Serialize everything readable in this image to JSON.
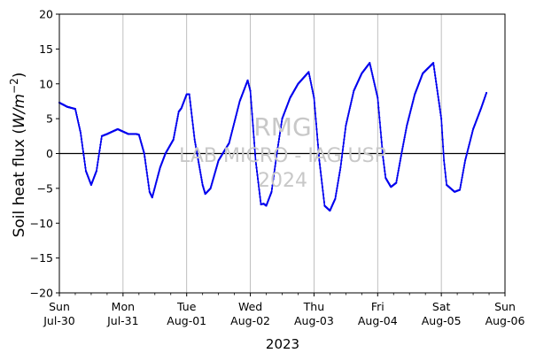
{
  "chart_data": {
    "type": "line",
    "ylabel": "Soil heat flux (W/m⁻²)",
    "ylabel_text": "Soil heat flux (",
    "ylabel_unit_W": "W",
    "ylabel_unit_m": "/m",
    "ylabel_exp": "−2",
    "ylabel_close": ")",
    "xlabel": "2023",
    "ylim": [
      -20,
      20
    ],
    "yticks": [
      20,
      15,
      10,
      5,
      0,
      -5,
      -10,
      -15,
      -20
    ],
    "ytick_labels": [
      "20",
      "15",
      "10",
      "5",
      "0",
      "−5",
      "−10",
      "−15",
      "−20"
    ],
    "xlim_days": [
      0,
      7
    ],
    "xticks": [
      {
        "day": "Sun",
        "date": "Jul-30"
      },
      {
        "day": "Mon",
        "date": "Jul-31"
      },
      {
        "day": "Tue",
        "date": "Aug-01"
      },
      {
        "day": "Wed",
        "date": "Aug-02"
      },
      {
        "day": "Thu",
        "date": "Aug-03"
      },
      {
        "day": "Fri",
        "date": "Aug-04"
      },
      {
        "day": "Sat",
        "date": "Aug-05"
      },
      {
        "day": "Sun",
        "date": "Aug-06"
      }
    ],
    "grid": "x-major",
    "zero_line": true,
    "series": [
      {
        "color": "#0000ee",
        "points": [
          [
            "2023-07-30 00:00",
            7.3
          ],
          [
            "2023-07-30 03:00",
            6.7
          ],
          [
            "2023-07-30 06:00",
            6.4
          ],
          [
            "2023-07-30 08:00",
            3.0
          ],
          [
            "2023-07-30 10:00",
            -2.5
          ],
          [
            "2023-07-30 12:00",
            -4.5
          ],
          [
            "2023-07-30 14:00",
            -2.5
          ],
          [
            "2023-07-30 16:00",
            2.5
          ],
          [
            "2023-07-30 18:00",
            2.8
          ],
          [
            "2023-07-30 22:00",
            3.5
          ],
          [
            "2023-07-31 02:00",
            2.8
          ],
          [
            "2023-07-31 05:00",
            2.8
          ],
          [
            "2023-07-31 06:00",
            2.7
          ],
          [
            "2023-07-31 08:00",
            0.0
          ],
          [
            "2023-07-31 10:00",
            -5.5
          ],
          [
            "2023-07-31 11:00",
            -6.3
          ],
          [
            "2023-07-31 14:00",
            -2.0
          ],
          [
            "2023-07-31 16:00",
            0.0
          ],
          [
            "2023-07-31 19:00",
            2.0
          ],
          [
            "2023-07-31 21:00",
            6.0
          ],
          [
            "2023-07-31 22:00",
            6.5
          ],
          [
            "2023-08-01 00:00",
            8.5
          ],
          [
            "2023-08-01 01:00",
            8.5
          ],
          [
            "2023-08-01 03:00",
            2.0
          ],
          [
            "2023-08-01 06:00",
            -4.5
          ],
          [
            "2023-08-01 07:00",
            -5.8
          ],
          [
            "2023-08-01 09:00",
            -5.0
          ],
          [
            "2023-08-01 12:00",
            -1.0
          ],
          [
            "2023-08-01 16:00",
            1.5
          ],
          [
            "2023-08-01 18:00",
            4.5
          ],
          [
            "2023-08-01 20:00",
            7.5
          ],
          [
            "2023-08-01 23:00",
            10.5
          ],
          [
            "2023-08-02 00:00",
            9.0
          ],
          [
            "2023-08-02 02:00",
            -1.0
          ],
          [
            "2023-08-02 04:00",
            -7.3
          ],
          [
            "2023-08-02 05:00",
            -7.2
          ],
          [
            "2023-08-02 06:00",
            -7.5
          ],
          [
            "2023-08-02 08:00",
            -5.5
          ],
          [
            "2023-08-02 10:00",
            0.0
          ],
          [
            "2023-08-02 12:00",
            5.0
          ],
          [
            "2023-08-02 15:00",
            8.0
          ],
          [
            "2023-08-02 18:00",
            10.0
          ],
          [
            "2023-08-02 22:00",
            11.7
          ],
          [
            "2023-08-03 00:00",
            8.0
          ],
          [
            "2023-08-03 02:00",
            -1.0
          ],
          [
            "2023-08-03 04:00",
            -7.5
          ],
          [
            "2023-08-03 06:00",
            -8.2
          ],
          [
            "2023-08-03 08:00",
            -6.5
          ],
          [
            "2023-08-03 10:00",
            -2.0
          ],
          [
            "2023-08-03 12:00",
            4.0
          ],
          [
            "2023-08-03 15:00",
            9.0
          ],
          [
            "2023-08-03 18:00",
            11.5
          ],
          [
            "2023-08-03 21:00",
            13.0
          ],
          [
            "2023-08-04 00:00",
            8.0
          ],
          [
            "2023-08-04 02:00",
            -0.5
          ],
          [
            "2023-08-04 03:00",
            -3.5
          ],
          [
            "2023-08-04 05:00",
            -4.8
          ],
          [
            "2023-08-04 07:00",
            -4.2
          ],
          [
            "2023-08-04 09:00",
            0.0
          ],
          [
            "2023-08-04 11:00",
            4.0
          ],
          [
            "2023-08-04 14:00",
            8.5
          ],
          [
            "2023-08-04 17:00",
            11.5
          ],
          [
            "2023-08-04 21:00",
            13.0
          ],
          [
            "2023-08-05 00:00",
            5.0
          ],
          [
            "2023-08-05 01:00",
            -1.0
          ],
          [
            "2023-08-05 02:00",
            -4.5
          ],
          [
            "2023-08-05 05:00",
            -5.5
          ],
          [
            "2023-08-05 07:00",
            -5.2
          ],
          [
            "2023-08-05 09:00",
            -1.0
          ],
          [
            "2023-08-05 12:00",
            3.5
          ],
          [
            "2023-08-05 15:00",
            6.5
          ],
          [
            "2023-08-05 17:00",
            8.7
          ]
        ]
      }
    ],
    "watermark": [
      "RMG",
      "LAB MICRO - IAG USP",
      "2024"
    ]
  }
}
